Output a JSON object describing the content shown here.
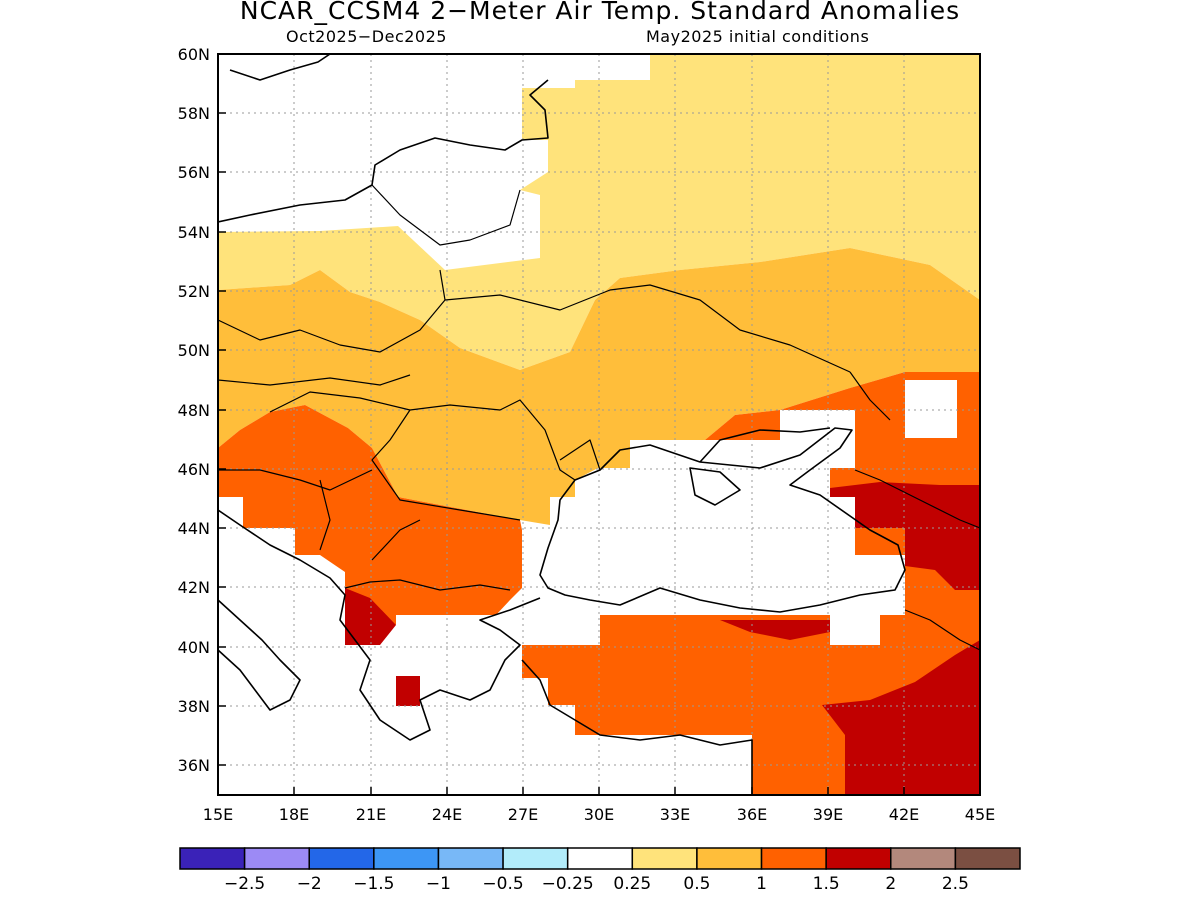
{
  "title": "NCAR_CCSM4 2−Meter Air Temp. Standard Anomalies",
  "subtitle_left": "Oct2025−Dec2025",
  "subtitle_right": "May2025 initial conditions",
  "map": {
    "lon_range": [
      15,
      45
    ],
    "lat_range": [
      35,
      60
    ],
    "lon_ticks": [
      "15E",
      "18E",
      "21E",
      "24E",
      "27E",
      "30E",
      "33E",
      "36E",
      "39E",
      "42E",
      "45E"
    ],
    "lat_ticks": [
      "36N",
      "38N",
      "40N",
      "42N",
      "44N",
      "46N",
      "48N",
      "50N",
      "52N",
      "54N",
      "56N",
      "58N",
      "60N"
    ],
    "grid": "dotted"
  },
  "colorbar": {
    "colors": [
      "#3a22b8",
      "#9c8af5",
      "#2367e8",
      "#3d96f5",
      "#78b8f7",
      "#b2ecfa",
      "#ffffff",
      "#ffe37b",
      "#ffbe3a",
      "#ff6100",
      "#c10000",
      "#b3887c",
      "#7b4f42"
    ],
    "labels": [
      "−2.5",
      "−2",
      "−1.5",
      "−1",
      "−0.5",
      "−0.25",
      "0.25",
      "0.5",
      "1",
      "1.5",
      "2",
      "2.5"
    ]
  },
  "anomaly_colors": {
    "0.25-0.5": "#ffe37b",
    "0.5-1": "#ffbe3a",
    "1-1.5": "#ff6100",
    "1.5-2": "#c10000"
  }
}
